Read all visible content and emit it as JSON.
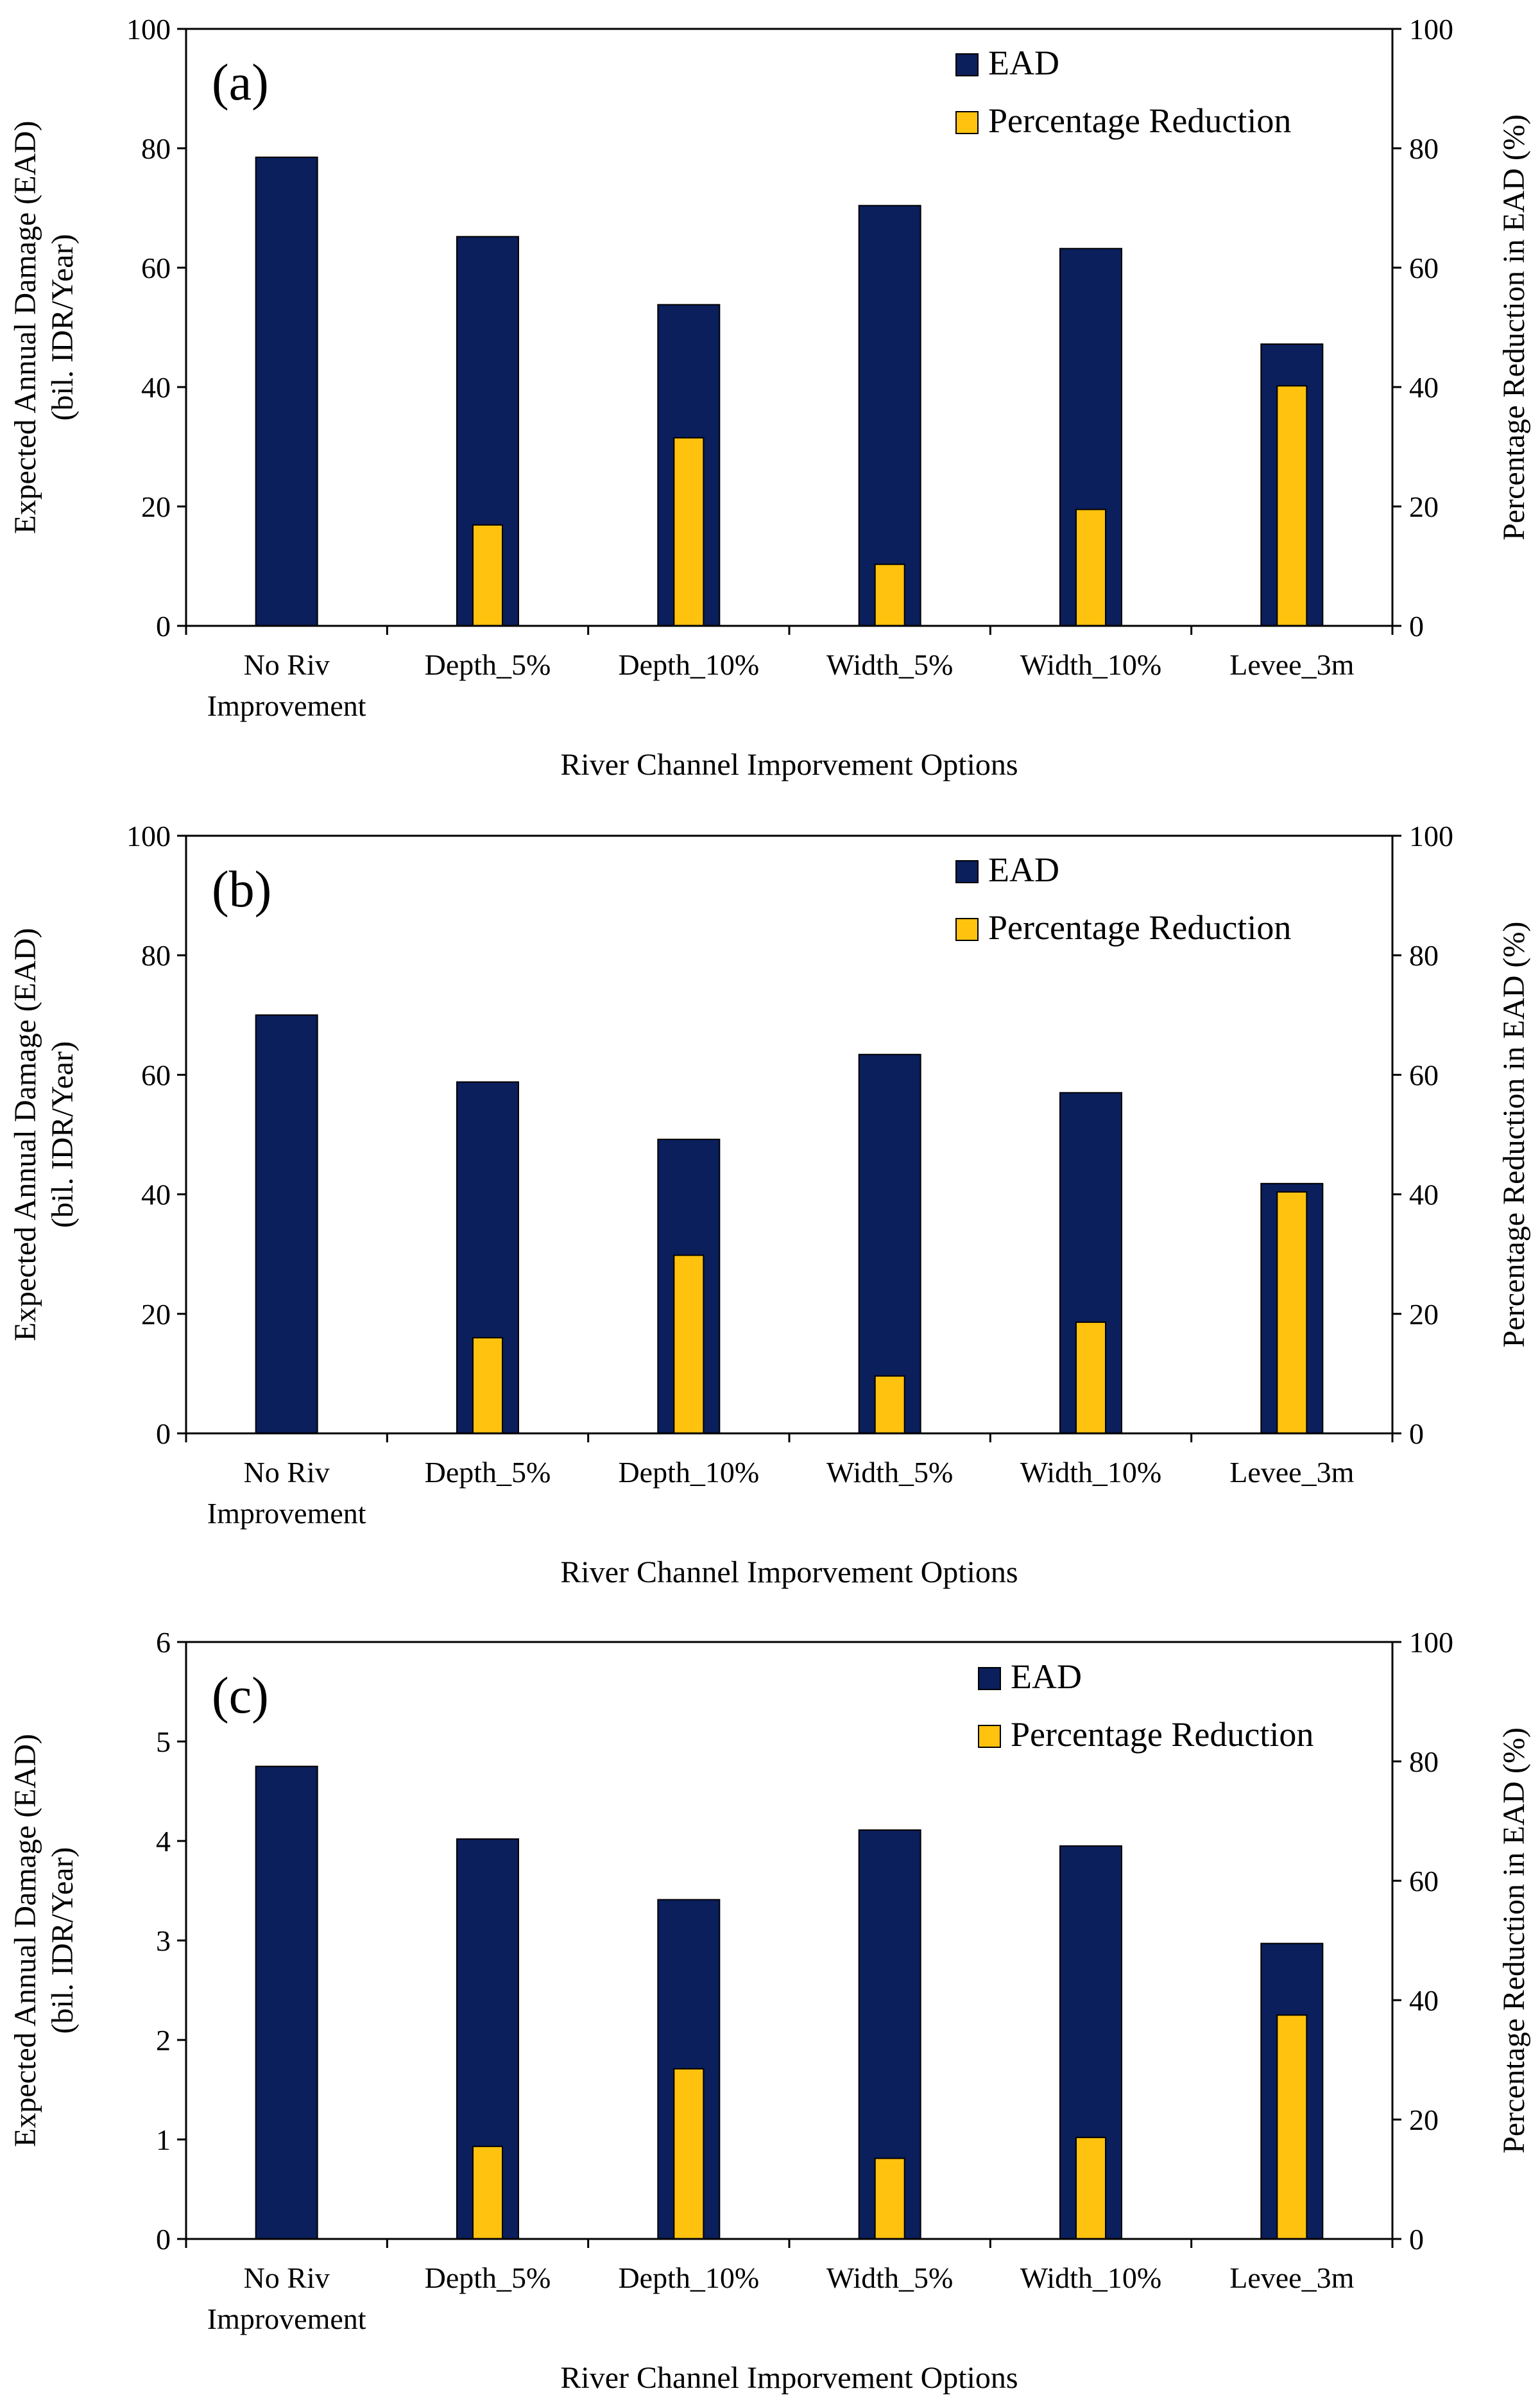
{
  "chart_data": [
    {
      "type": "bar",
      "panel_label": "(a)",
      "categories": [
        "No Riv Improvement",
        "Depth_5%",
        "Depth_10%",
        "Width_5%",
        "Width_10%",
        "Levee_3m"
      ],
      "category_lines": [
        [
          "No Riv",
          "Improvement"
        ],
        [
          "Depth_5%"
        ],
        [
          "Depth_10%"
        ],
        [
          "Width_5%"
        ],
        [
          "Width_10%"
        ],
        [
          "Levee_3m"
        ]
      ],
      "series": [
        {
          "name": "EAD",
          "axis": "left",
          "color": "#0a1f5c",
          "values": [
            78.5,
            65.2,
            53.8,
            70.4,
            63.2,
            47.2
          ]
        },
        {
          "name": "Percentage Reduction",
          "axis": "right",
          "color": "#ffc20e",
          "values": [
            0,
            16.9,
            31.5,
            10.3,
            19.5,
            40.2
          ]
        }
      ],
      "ylabel_lines": [
        "Expected Annual Damage (EAD)",
        "(bil. IDR/Year)"
      ],
      "y2label": "Percentage Reduction in EAD (%)",
      "xlabel": "River Channel Imporvement Options",
      "ylim": [
        0,
        100
      ],
      "yticks": [
        0,
        20,
        40,
        60,
        80,
        100
      ],
      "y2lim": [
        0,
        100
      ],
      "y2ticks": [
        0,
        20,
        40,
        60,
        80,
        100
      ],
      "legend_position": "top-right",
      "grid": false
    },
    {
      "type": "bar",
      "panel_label": "(b)",
      "categories": [
        "No Riv Improvement",
        "Depth_5%",
        "Depth_10%",
        "Width_5%",
        "Width_10%",
        "Levee_3m"
      ],
      "category_lines": [
        [
          "No Riv",
          "Improvement"
        ],
        [
          "Depth_5%"
        ],
        [
          "Depth_10%"
        ],
        [
          "Width_5%"
        ],
        [
          "Width_10%"
        ],
        [
          "Levee_3m"
        ]
      ],
      "series": [
        {
          "name": "EAD",
          "axis": "left",
          "color": "#0a1f5c",
          "values": [
            70.0,
            58.8,
            49.2,
            63.4,
            57.0,
            41.8
          ]
        },
        {
          "name": "Percentage Reduction",
          "axis": "right",
          "color": "#ffc20e",
          "values": [
            0,
            16.0,
            29.8,
            9.6,
            18.6,
            40.4
          ]
        }
      ],
      "ylabel_lines": [
        "Expected Annual Damage (EAD)",
        "(bil. IDR/Year)"
      ],
      "y2label": "Percentage Reduction in EAD (%)",
      "xlabel": "River Channel Imporvement Options",
      "ylim": [
        0,
        100
      ],
      "yticks": [
        0,
        20,
        40,
        60,
        80,
        100
      ],
      "y2lim": [
        0,
        100
      ],
      "y2ticks": [
        0,
        20,
        40,
        60,
        80,
        100
      ],
      "legend_position": "top-right",
      "grid": false
    },
    {
      "type": "bar",
      "panel_label": "(c)",
      "categories": [
        "No Riv Improvement",
        "Depth_5%",
        "Depth_10%",
        "Width_5%",
        "Width_10%",
        "Levee_3m"
      ],
      "category_lines": [
        [
          "No Riv",
          "Improvement"
        ],
        [
          "Depth_5%"
        ],
        [
          "Depth_10%"
        ],
        [
          "Width_5%"
        ],
        [
          "Width_10%"
        ],
        [
          "Levee_3m"
        ]
      ],
      "series": [
        {
          "name": "EAD",
          "axis": "left",
          "color": "#0a1f5c",
          "values": [
            4.75,
            4.02,
            3.41,
            4.11,
            3.95,
            2.97
          ]
        },
        {
          "name": "Percentage Reduction",
          "axis": "right",
          "color": "#ffc20e",
          "values": [
            0,
            15.5,
            28.5,
            13.5,
            17.0,
            37.5
          ]
        }
      ],
      "ylabel_lines": [
        "Expected Annual Damage (EAD)",
        "(bil. IDR/Year)"
      ],
      "y2label": "Percentage Reduction in EAD (%)",
      "xlabel": "River Channel Imporvement Options",
      "ylim": [
        0,
        6
      ],
      "yticks": [
        0,
        1,
        2,
        3,
        4,
        5,
        6
      ],
      "y2lim": [
        0,
        100
      ],
      "y2ticks": [
        0,
        20,
        40,
        60,
        80,
        100
      ],
      "legend_position": "top-right",
      "grid": false
    }
  ]
}
